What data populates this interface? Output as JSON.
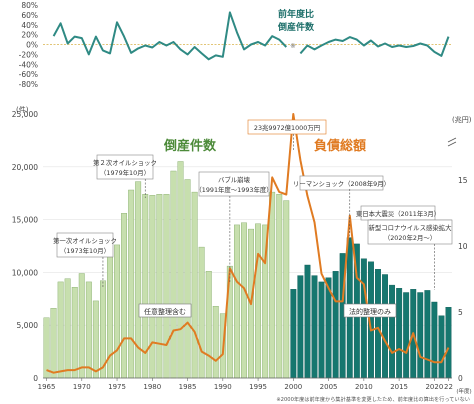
{
  "chart_data": [
    {
      "type": "line",
      "title": "前年度比\n倒産件数",
      "yaxis": {
        "ticks": [
          "80%",
          "60%",
          "40%",
          "20%",
          "0%",
          "-20%",
          "-40%",
          "-60%",
          "-80%"
        ],
        "ylim": [
          -80,
          80
        ]
      },
      "series": [
        {
          "x": [
            1966,
            1967,
            1968,
            1969,
            1970,
            1971,
            1972,
            1973,
            1974,
            1975,
            1976,
            1977,
            1978,
            1979,
            1980,
            1981,
            1982,
            1983,
            1984,
            1985,
            1986,
            1987,
            1988,
            1989,
            1990,
            1991,
            1992,
            1993,
            1994,
            1995,
            1996,
            1997,
            1998,
            1999
          ],
          "values": [
            17,
            43,
            2,
            16,
            13,
            -20,
            16,
            -12,
            -18,
            45,
            16,
            -17,
            -8,
            -2,
            -6,
            5,
            -2,
            5,
            -10,
            -20,
            -5,
            -18,
            -30,
            -22,
            -25,
            65,
            25,
            -10,
            0,
            5,
            -2,
            17,
            10,
            -5
          ],
          "color": "#2f8a84"
        },
        {
          "x": [
            2001,
            2002,
            2003,
            2004,
            2005,
            2006,
            2007,
            2008,
            2009,
            2010,
            2011,
            2012,
            2013,
            2014,
            2015,
            2016,
            2017,
            2018,
            2019,
            2020,
            2021,
            2022
          ],
          "values": [
            -18,
            -2,
            -10,
            -2,
            5,
            10,
            7,
            15,
            10,
            -2,
            8,
            -4,
            2,
            -5,
            -2,
            -5,
            -3,
            2,
            -2,
            -15,
            -23,
            16
          ],
          "color": "#2f8a84"
        }
      ],
      "annotations": [
        "※"
      ]
    },
    {
      "type": "bar",
      "title": "倒産件数",
      "y_unit": "(件)",
      "y2_unit": "(兆円)",
      "yaxis": {
        "ticks": [
          "0",
          "5,000",
          "10,000",
          "15,000",
          "20,000",
          "25,000"
        ],
        "ylim": [
          0,
          25000
        ]
      },
      "y2axis": {
        "ticks": [
          "0",
          "5",
          "10",
          "15"
        ],
        "ylim": [
          0,
          20
        ],
        "break": true
      },
      "xaxis": {
        "ticks": [
          "1965",
          "1970",
          "1975",
          "1980",
          "1985",
          "1990",
          "1995",
          "2000",
          "2005",
          "2010",
          "2015",
          "2020",
          "22"
        ],
        "tick_years": [
          1965,
          1970,
          1975,
          1980,
          1985,
          1990,
          1995,
          2000,
          2005,
          2010,
          2015,
          2020,
          2022
        ],
        "unit": "(年度)",
        "xlim": [
          1964.5,
          2022.5
        ]
      },
      "bar_series": [
        {
          "name": "任意整理含む",
          "color": "#c7dfae",
          "x": [
            1965,
            1966,
            1967,
            1968,
            1969,
            1970,
            1971,
            1972,
            1973,
            1974,
            1975,
            1976,
            1977,
            1978,
            1979,
            1980,
            1981,
            1982,
            1983,
            1984,
            1985,
            1986,
            1987,
            1988,
            1989,
            1990,
            1991,
            1992,
            1993,
            1994,
            1995,
            1996,
            1997,
            1998,
            1999
          ],
          "values": [
            5700,
            6600,
            9100,
            9400,
            8600,
            9900,
            9100,
            7300,
            9200,
            12000,
            12600,
            15600,
            17800,
            18600,
            17400,
            17300,
            17400,
            17400,
            19600,
            20500,
            18800,
            17600,
            12400,
            10100,
            6800,
            6100,
            10600,
            14500,
            14700,
            14100,
            14600,
            14500,
            17600,
            17400,
            16800
          ]
        },
        {
          "name": "法的整理のみ",
          "color": "#16776f",
          "x": [
            2000,
            2001,
            2002,
            2003,
            2004,
            2005,
            2006,
            2007,
            2008,
            2009,
            2010,
            2011,
            2012,
            2013,
            2014,
            2015,
            2016,
            2017,
            2018,
            2019,
            2020,
            2021,
            2022
          ],
          "values": [
            8400,
            9700,
            10700,
            9700,
            9100,
            9500,
            10100,
            11800,
            13300,
            12700,
            11300,
            11000,
            10300,
            9800,
            8800,
            8500,
            8100,
            8400,
            8100,
            8300,
            7200,
            5900,
            6700
          ]
        }
      ],
      "line_series": {
        "name": "負債総額",
        "color": "#e07b22",
        "x": [
          1965,
          1966,
          1967,
          1968,
          1969,
          1970,
          1971,
          1972,
          1973,
          1974,
          1975,
          1976,
          1977,
          1978,
          1979,
          1980,
          1981,
          1982,
          1983,
          1984,
          1985,
          1986,
          1987,
          1988,
          1989,
          1990,
          1991,
          1992,
          1993,
          1994,
          1995,
          1996,
          1997,
          1998,
          1999,
          2000,
          2001,
          2002,
          2003,
          2004,
          2005,
          2006,
          2007,
          2008,
          2009,
          2010,
          2011,
          2012,
          2013,
          2014,
          2015,
          2016,
          2017,
          2018,
          2019,
          2020,
          2021,
          2022
        ],
        "values": [
          0.6,
          0.4,
          0.5,
          0.6,
          0.6,
          0.8,
          0.8,
          0.5,
          0.8,
          1.7,
          2.1,
          3.0,
          3.0,
          2.3,
          1.9,
          2.7,
          2.6,
          2.5,
          3.6,
          3.7,
          4.2,
          3.5,
          2.0,
          1.7,
          1.3,
          1.8,
          8.3,
          7.3,
          6.8,
          5.6,
          9.4,
          8.7,
          15.2,
          14.1,
          13.9,
          23.9,
          16.5,
          13.8,
          11.8,
          7.9,
          6.8,
          5.8,
          5.8,
          12.3,
          7.6,
          7.1,
          3.6,
          3.8,
          2.8,
          1.9,
          2.2,
          1.9,
          3.4,
          1.6,
          1.4,
          1.2,
          1.2,
          2.3
        ]
      },
      "annotations": [
        {
          "text": "第一次オイルショック\n（1973年10月）",
          "year": 1973
        },
        {
          "text": "第２次オイルショック\n（1979年10月）",
          "year": 1979
        },
        {
          "text": "バブル崩壊\n（1991年度～1993年度）",
          "year": 1991
        },
        {
          "text": "23兆9972億1000万円",
          "year": 2000
        },
        {
          "text": "リーマンショック（2008年9月）",
          "year": 2008
        },
        {
          "text": "東日本大震災（2011年3月）",
          "year": 2011
        },
        {
          "text": "新型コロナウイルス感染拡大\n（2020年2月～）",
          "year": 2020
        }
      ],
      "footnote": "※2000年度は前年度から集計基準を変更したため、前年度比の算出を行っていない"
    }
  ]
}
